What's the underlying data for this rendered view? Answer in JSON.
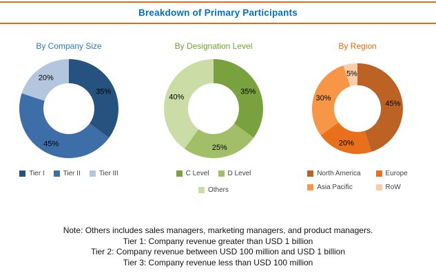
{
  "header": {
    "title": "Breakdown of Primary Participants",
    "title_color": "#0070c0",
    "accent_color": "#e36c0a"
  },
  "chart_data": [
    {
      "type": "pie",
      "subtype": "donut",
      "title": "By Company Size",
      "title_color": "#2e75b6",
      "categories": [
        "Tier I",
        "Tier II",
        "Tier III"
      ],
      "values": [
        35,
        45,
        20
      ],
      "labels": [
        "35%",
        "45%",
        "20%"
      ],
      "colors": [
        "#25527e",
        "#3d6ea8",
        "#b4c5de"
      ],
      "legend_position": "bottom",
      "start_angle_deg": 0,
      "direction": "clockwise"
    },
    {
      "type": "pie",
      "subtype": "donut",
      "title": "By Designation Level",
      "title_color": "#6fa22e",
      "categories": [
        "C Level",
        "D Level",
        "Others"
      ],
      "values": [
        35,
        25,
        40
      ],
      "labels": [
        "35%",
        "25%",
        "40%"
      ],
      "colors": [
        "#79a23e",
        "#a2be68",
        "#ccdca6"
      ],
      "legend_position": "bottom",
      "start_angle_deg": 0,
      "direction": "clockwise"
    },
    {
      "type": "pie",
      "subtype": "donut",
      "title": "By Region",
      "title_color": "#e36c0a",
      "categories": [
        "North America",
        "Europe",
        "Asia Pacific",
        "RoW"
      ],
      "values": [
        45,
        20,
        30,
        5
      ],
      "labels": [
        "45%",
        "20%",
        "30%",
        "5%"
      ],
      "colors": [
        "#bc6225",
        "#e8701a",
        "#f79646",
        "#fbcda8"
      ],
      "legend_position": "bottom",
      "start_angle_deg": 0,
      "direction": "clockwise"
    }
  ],
  "notes": [
    "Note: Others includes sales managers, marketing managers, and product managers.",
    "Tier 1: Company revenue greater than USD 1 billion",
    "Tier 2: Company revenue between USD 100 million and USD 1 billion",
    "Tier 3: Company revenue less than USD 100 million"
  ]
}
